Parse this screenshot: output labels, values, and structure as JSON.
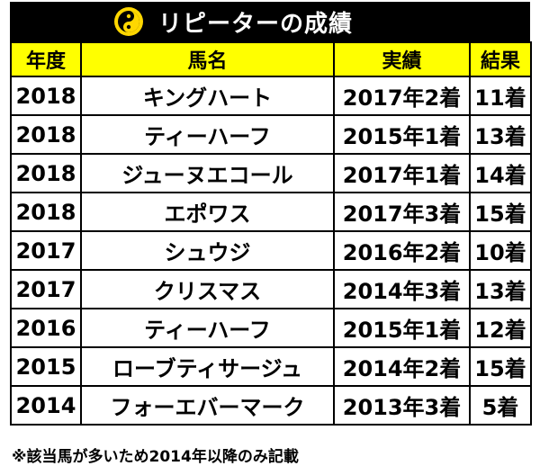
{
  "title": "リピーターの成績",
  "logo_icon": "yin-yang-emblem-icon",
  "colors": {
    "title_bg": "#000000",
    "header_bg": "#ffff00",
    "logo_yellow": "#ffd700"
  },
  "table": {
    "headers": {
      "year": "年度",
      "horse": "馬名",
      "record": "実績",
      "result": "結果"
    },
    "rows": [
      {
        "year": "2018",
        "horse": "キングハート",
        "record": "2017年2着",
        "result": "11着"
      },
      {
        "year": "2018",
        "horse": "ティーハーフ",
        "record": "2015年1着",
        "result": "13着"
      },
      {
        "year": "2018",
        "horse": "ジューヌエコール",
        "record": "2017年1着",
        "result": "14着"
      },
      {
        "year": "2018",
        "horse": "エポワス",
        "record": "2017年3着",
        "result": "15着"
      },
      {
        "year": "2017",
        "horse": "シュウジ",
        "record": "2016年2着",
        "result": "10着"
      },
      {
        "year": "2017",
        "horse": "クリスマス",
        "record": "2014年3着",
        "result": "13着"
      },
      {
        "year": "2016",
        "horse": "ティーハーフ",
        "record": "2015年1着",
        "result": "12着"
      },
      {
        "year": "2015",
        "horse": "ローブティサージュ",
        "record": "2014年2着",
        "result": "15着"
      },
      {
        "year": "2014",
        "horse": "フォーエバーマーク",
        "record": "2013年3着",
        "result": "5着"
      }
    ]
  },
  "footnote": "※該当馬が多いため2014年以降のみ記載"
}
